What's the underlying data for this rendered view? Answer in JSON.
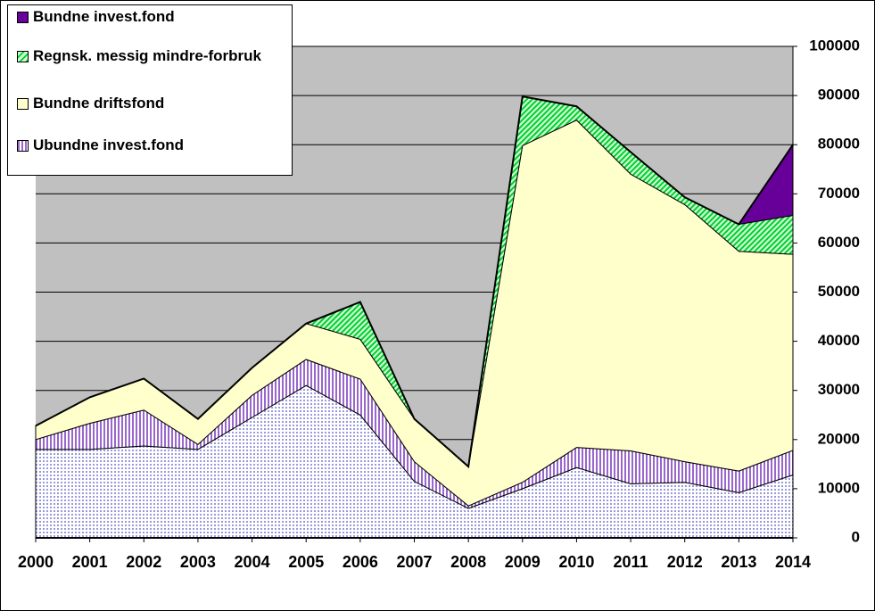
{
  "chart_data": {
    "type": "stacked-area",
    "categories": [
      "2000",
      "2001",
      "2002",
      "2003",
      "2004",
      "2005",
      "2006",
      "2007",
      "2008",
      "2009",
      "2010",
      "2011",
      "2012",
      "2013",
      "2014"
    ],
    "series": [
      {
        "name": null,
        "color": "#ccccff",
        "values": [
          18000,
          18000,
          18700,
          18000,
          24500,
          31000,
          25000,
          11500,
          6000,
          10000,
          14300,
          11000,
          11300,
          9200,
          12800
        ]
      },
      {
        "name": "Ubundne invest.fond",
        "color": "#9966cc",
        "values": [
          2000,
          5300,
          7300,
          1000,
          4500,
          5300,
          7300,
          4000,
          500,
          1300,
          4100,
          6700,
          4200,
          4400,
          5000
        ]
      },
      {
        "name": "Bundne driftsfond",
        "color": "#ffffcc",
        "values": [
          2800,
          5300,
          6400,
          5200,
          5600,
          7300,
          8100,
          8700,
          8000,
          68500,
          66600,
          56300,
          52300,
          44700,
          39900
        ]
      },
      {
        "name": "Regnsk. messig mindre-forbruk",
        "color": "#66ff66",
        "values": [
          0,
          0,
          0,
          0,
          0,
          0,
          7600,
          0,
          0,
          10000,
          2800,
          4500,
          1500,
          5500,
          7900
        ]
      },
      {
        "name": "Bundne invest.fond",
        "color": "#660099",
        "values": [
          0,
          0,
          0,
          0,
          0,
          0,
          0,
          0,
          0,
          0,
          0,
          0,
          0,
          0,
          14400
        ]
      }
    ],
    "ylim": [
      0,
      100000
    ],
    "yticks": [
      0,
      10000,
      20000,
      30000,
      40000,
      50000,
      60000,
      70000,
      80000,
      90000,
      100000
    ],
    "grid": true,
    "plot_background": "#c0c0c0"
  }
}
